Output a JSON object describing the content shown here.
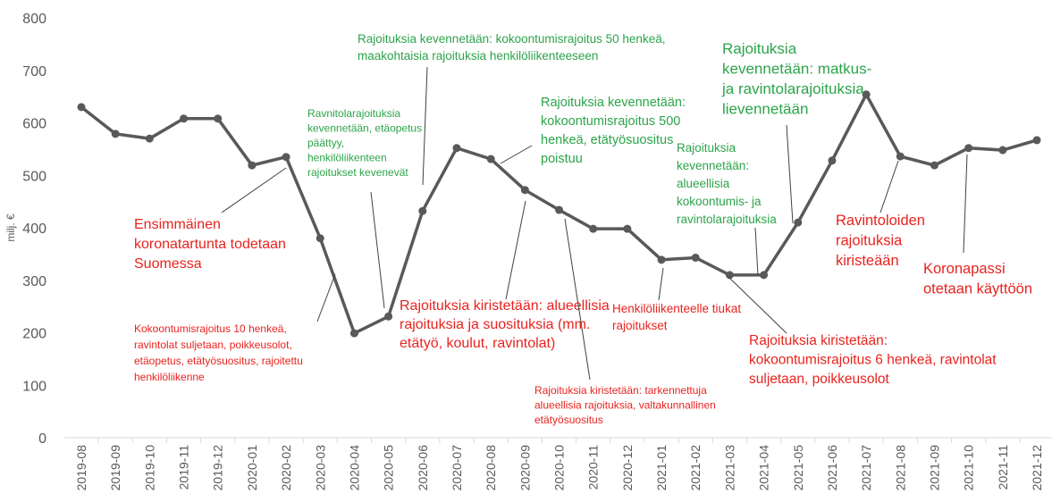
{
  "chart_data": {
    "type": "line",
    "y_label": "milj. €",
    "categories": [
      "2019-08",
      "2019-09",
      "2019-10",
      "2019-11",
      "2019-12",
      "2020-01",
      "2020-02",
      "2020-03",
      "2020-04",
      "2020-05",
      "2020-06",
      "2020-07",
      "2020-08",
      "2020-09",
      "2020-10",
      "2020-11",
      "2020-12",
      "2021-01",
      "2021-02",
      "2021-03",
      "2021-04",
      "2021-05",
      "2021-06",
      "2021-07",
      "2021-08",
      "2021-09",
      "2021-10",
      "2021-11",
      "2021-12"
    ],
    "values": [
      630,
      579,
      570,
      608,
      608,
      519,
      535,
      380,
      199,
      231,
      432,
      552,
      531,
      472,
      434,
      398,
      398,
      339,
      343,
      310,
      310,
      410,
      528,
      654,
      536,
      519,
      552,
      548,
      567
    ],
    "color": "#595959",
    "ylim": [
      0,
      800
    ],
    "yticks": [
      0,
      100,
      200,
      300,
      400,
      500,
      600,
      700,
      800
    ],
    "annotations": [
      {
        "color": "#2ca44a",
        "lines": [
          "Rajoituksia kevennetään: kokoontumisrajoitus 50 henkeä,",
          "maakohtaisia rajoituksia henkilöliikenteeseen"
        ]
      },
      {
        "color": "#2ca44a",
        "lines": [
          "Ravnitolarajoituksia",
          "kevennetään, etäopetus",
          "päättyy,",
          "henkilöliikenteen",
          "rajoitukset kevenevät"
        ]
      },
      {
        "color": "#e8231f",
        "lines": [
          "Ensimmäinen",
          "koronatartunta todetaan",
          "Suomessa"
        ]
      },
      {
        "color": "#e8231f",
        "lines": [
          "Kokoontumisrajoitus 10 henkeä,",
          "ravintolat suljetaan, poikkeusolot,",
          "etäopetus, etätyösuositus, rajoitettu",
          "henkilöliikenne"
        ]
      },
      {
        "color": "#2ca44a",
        "lines": [
          "Rajoituksia kevennetään:",
          "kokoontumisrajoitus 500",
          "henkeä, etätyösuositus",
          "poistuu"
        ]
      },
      {
        "color": "#e8231f",
        "lines": [
          "Rajoituksia kiristetään: alueellisia",
          "rajoituksia ja suosituksia (mm.",
          "etätyö, koulut, ravintolat)"
        ]
      },
      {
        "color": "#e8231f",
        "lines": [
          "Rajoituksia kiristetään: tarkennettuja",
          "alueellisia  rajoituksia, valtakunnallinen",
          "etätyösuositus"
        ]
      },
      {
        "color": "#e8231f",
        "lines": [
          "Henkilöliikenteelle tiukat",
          "rajoitukset"
        ]
      },
      {
        "color": "#2ca44a",
        "lines": [
          "Rajoituksia",
          "kevennetään:",
          "alueellisia",
          "kokoontumis- ja",
          "ravintolarajoituksia"
        ]
      },
      {
        "color": "#2ca44a",
        "lines": [
          "Rajoituksia",
          "kevennetään: matkus-",
          "ja ravintolarajoituksia",
          "lievennetään"
        ]
      },
      {
        "color": "#e8231f",
        "lines": [
          "Rajoituksia kiristetään:",
          "kokoontumisrajoitus 6 henkeä, ravintolat",
          "suljetaan, poikkeusolot"
        ]
      },
      {
        "color": "#e8231f",
        "lines": [
          "Ravintoloiden",
          "rajoituksia",
          "kiristeään"
        ]
      },
      {
        "color": "#e8231f",
        "lines": [
          "Koronapassi",
          "otetaan käyttöön"
        ]
      }
    ]
  }
}
